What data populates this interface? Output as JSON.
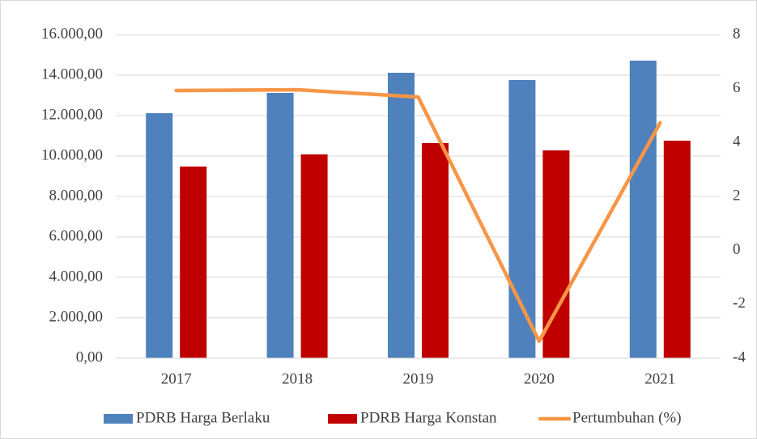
{
  "chart_data": {
    "type": "bar_line",
    "categories": [
      "2017",
      "2018",
      "2019",
      "2020",
      "2021"
    ],
    "series": [
      {
        "name": "PDRB Harga Berlaku",
        "color": "#4f81bd",
        "values": [
          12120,
          13120,
          14120,
          13760,
          14720
        ]
      },
      {
        "name": "PDRB Harga Konstan",
        "color": "#c00000",
        "values": [
          9480,
          10080,
          10640,
          10280,
          10760
        ]
      },
      {
        "name": "Pertumbuhan (%)",
        "color": "#f79646",
        "axis": "y2",
        "values": [
          5.93,
          5.96,
          5.69,
          -3.37,
          4.73
        ]
      }
    ],
    "ylim": [
      0,
      16000
    ],
    "yticks": [
      {
        "value": 0,
        "label": "0,00"
      },
      {
        "value": 2000,
        "label": "2.000,00"
      },
      {
        "value": 4000,
        "label": "4.000,00"
      },
      {
        "value": 6000,
        "label": "6.000,00"
      },
      {
        "value": 8000,
        "label": "8.000,00"
      },
      {
        "value": 10000,
        "label": "10.000,00"
      },
      {
        "value": 12000,
        "label": "12.000,00"
      },
      {
        "value": 14000,
        "label": "14.000,00"
      },
      {
        "value": 16000,
        "label": "16.000,00"
      }
    ],
    "y2lim": [
      -4,
      8
    ],
    "y2ticks": [
      -4,
      -2,
      0,
      2,
      4,
      6,
      8
    ],
    "grid": true,
    "legend": "bottom"
  }
}
